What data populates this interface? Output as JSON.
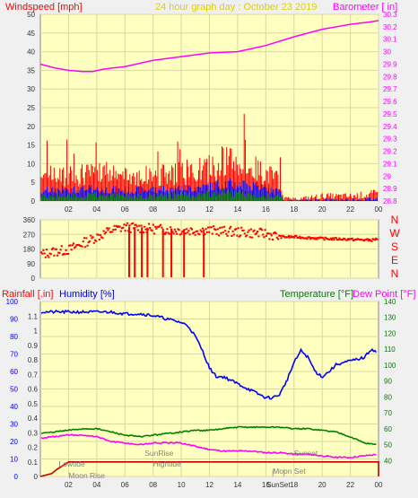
{
  "header": {
    "left_label": "Windspeed [mph]",
    "center_label": "24 hour graph day : October 23 2019",
    "right_label": "Barometer [ in]"
  },
  "colors": {
    "plot_bg": "#ffffc0",
    "grid": "#d8d8a0",
    "wind": "#ff0000",
    "gust": "#0000ff",
    "avg": "#008000",
    "baro": "#ff00ff",
    "dir": "#ff0000",
    "humidity": "#0000ff",
    "temperature": "#008000",
    "dewpoint": "#ff00ff",
    "rain": "#c00000",
    "axis_red": "#ff0000",
    "axis_blue": "#0000ff",
    "axis_green": "#008000"
  },
  "chart_data": [
    {
      "type": "line",
      "name": "wind-barometer",
      "x_tick_labels": [
        "02",
        "04",
        "06",
        "08",
        "10",
        "12",
        "14",
        "16",
        "18",
        "20",
        "22",
        "00"
      ],
      "x_ticks_hours": [
        2,
        4,
        6,
        8,
        10,
        12,
        14,
        16,
        18,
        20,
        22,
        24
      ],
      "xlim_hours": [
        0,
        24
      ],
      "left_axis": {
        "label": "Windspeed [mph]",
        "ylim": [
          0,
          50
        ],
        "ticks": [
          0,
          5,
          10,
          15,
          20,
          25,
          30,
          35,
          40,
          45,
          50
        ]
      },
      "right_axis": {
        "label": "Barometer [ in]",
        "ylim": [
          28.8,
          30.3
        ],
        "ticks": [
          "28.8",
          "28.9",
          "29",
          "29.1",
          "29.2",
          "29.3",
          "29.4",
          "29.5",
          "29.6",
          "29.7",
          "29.8",
          "29.9",
          "30",
          "30.1",
          "30.2",
          "30.3"
        ]
      },
      "series": [
        {
          "key": "barometer",
          "x": [
            0,
            1,
            2,
            3,
            3.7,
            4.5,
            6,
            8,
            10,
            12,
            14,
            16,
            18,
            20,
            22,
            23.5,
            24
          ],
          "y": [
            29.9,
            29.87,
            29.85,
            29.84,
            29.84,
            29.86,
            29.88,
            29.93,
            29.96,
            29.99,
            30.0,
            30.05,
            30.12,
            30.18,
            30.22,
            30.24,
            30.25
          ]
        },
        {
          "key": "wind_avg_envelope",
          "x": [
            0,
            2,
            4,
            6,
            8,
            10,
            12,
            13,
            14,
            15,
            16,
            17,
            17.3,
            18,
            20,
            22,
            24
          ],
          "y": [
            3,
            3.2,
            3.4,
            3,
            3.2,
            3.5,
            4,
            5,
            4.5,
            4,
            3.5,
            2.5,
            0.5,
            0.3,
            0.8,
            0.8,
            1.2
          ]
        }
      ]
    },
    {
      "type": "scatter",
      "name": "wind-direction",
      "xlim_hours": [
        0,
        24
      ],
      "left_axis": {
        "ylim": [
          0,
          360
        ],
        "ticks": [
          0,
          90,
          180,
          270,
          360
        ]
      },
      "right_axis": {
        "labels": [
          "N",
          "W",
          "S",
          "E",
          "N"
        ]
      },
      "series": [
        {
          "key": "direction",
          "x": [
            0,
            1,
            2,
            3,
            4,
            5,
            6,
            8,
            10,
            12,
            14,
            16,
            17,
            18,
            20,
            22,
            23.5,
            24
          ],
          "y": [
            150,
            170,
            180,
            220,
            260,
            300,
            320,
            310,
            300,
            300,
            290,
            280,
            260,
            260,
            250,
            245,
            240,
            250
          ]
        }
      ]
    },
    {
      "type": "line",
      "name": "temperature-humidity",
      "x_tick_labels": [
        "02",
        "04",
        "06",
        "08",
        "10",
        "12",
        "14",
        "16",
        "SunSet",
        "18",
        "20",
        "22",
        "00"
      ],
      "xlim_hours": [
        0,
        24
      ],
      "axis_titles": {
        "rainfall": "Rainfall [.in]",
        "humidity": "Humidity [%]",
        "temperature": "Temperature [°F]",
        "dewpoint": "Dew Point [°F]"
      },
      "humidity_axis": {
        "ylim": [
          0,
          100
        ],
        "ticks": [
          0,
          10,
          20,
          30,
          40,
          50,
          60,
          70,
          80,
          90,
          100
        ]
      },
      "rain_axis": {
        "ylim": [
          0,
          1.2
        ],
        "ticks": [
          "0",
          "0.1",
          "0.2",
          "0.3",
          "0.4",
          "0.5",
          "0.6",
          "0.7",
          "0.8",
          "0.9",
          "1",
          "1.1"
        ]
      },
      "temp_axis": {
        "ylim": [
          30,
          140
        ],
        "ticks": [
          40,
          50,
          60,
          70,
          80,
          90,
          100,
          110,
          120,
          130,
          140
        ]
      },
      "series": [
        {
          "key": "humidity",
          "axis": "humidity",
          "x": [
            0,
            1,
            2,
            3,
            4,
            5,
            6,
            7,
            8,
            9,
            10,
            10.5,
            11,
            11.5,
            12,
            12.5,
            13,
            14,
            15,
            15.5,
            16,
            16.5,
            17,
            17.5,
            18,
            18.5,
            19,
            19.5,
            20,
            20.5,
            21,
            22,
            23,
            23.5,
            24
          ],
          "y": [
            94,
            94,
            94,
            94,
            94,
            94,
            93,
            93,
            92,
            90,
            88,
            86,
            80,
            72,
            62,
            57,
            57,
            53,
            49,
            47,
            45,
            45,
            47,
            55,
            65,
            72,
            68,
            60,
            57,
            60,
            64,
            66,
            68,
            73,
            70
          ]
        },
        {
          "key": "temperature",
          "axis": "temp",
          "x": [
            0,
            1,
            2,
            3,
            4,
            5,
            6,
            7,
            8,
            9,
            10,
            11,
            12,
            13,
            14,
            15,
            16,
            17,
            18,
            19,
            20,
            21,
            22,
            23,
            24
          ],
          "y": [
            57,
            58,
            59,
            60,
            60,
            58,
            56,
            55,
            56,
            57,
            58,
            59,
            59,
            60,
            61,
            61,
            61,
            61,
            60,
            60,
            59,
            58,
            55,
            51,
            50
          ]
        },
        {
          "key": "dewpoint",
          "axis": "temp",
          "x": [
            0,
            1,
            2,
            3,
            4,
            5,
            6,
            7,
            8,
            9,
            10,
            11,
            12,
            13,
            14,
            15,
            16,
            17,
            18,
            19,
            20,
            21,
            22,
            23,
            24
          ],
          "y": [
            54,
            55,
            56,
            56,
            55,
            52,
            51,
            50,
            51,
            51,
            51,
            49,
            47,
            46,
            46,
            46,
            45,
            45,
            44,
            44,
            43,
            42,
            42,
            43,
            44
          ]
        },
        {
          "key": "rainfall",
          "axis": "rain",
          "x": [
            0,
            0.8,
            1.2,
            2,
            5,
            8,
            12,
            16,
            20,
            23.9,
            24,
            24
          ],
          "y": [
            0,
            0.02,
            0.05,
            0.1,
            0.1,
            0.1,
            0.1,
            0.1,
            0.1,
            0.1,
            0.1,
            0
          ]
        }
      ],
      "annotations": [
        {
          "text": "Lowtide",
          "x": 1.3
        },
        {
          "text": "Moon Rise",
          "x": 2
        },
        {
          "text": "SunRise",
          "x": 7.4
        },
        {
          "text": "Hightide",
          "x": 8
        },
        {
          "text": "Moon Set",
          "x": 16.5
        },
        {
          "text": "Sunset",
          "x": 18
        }
      ]
    }
  ]
}
